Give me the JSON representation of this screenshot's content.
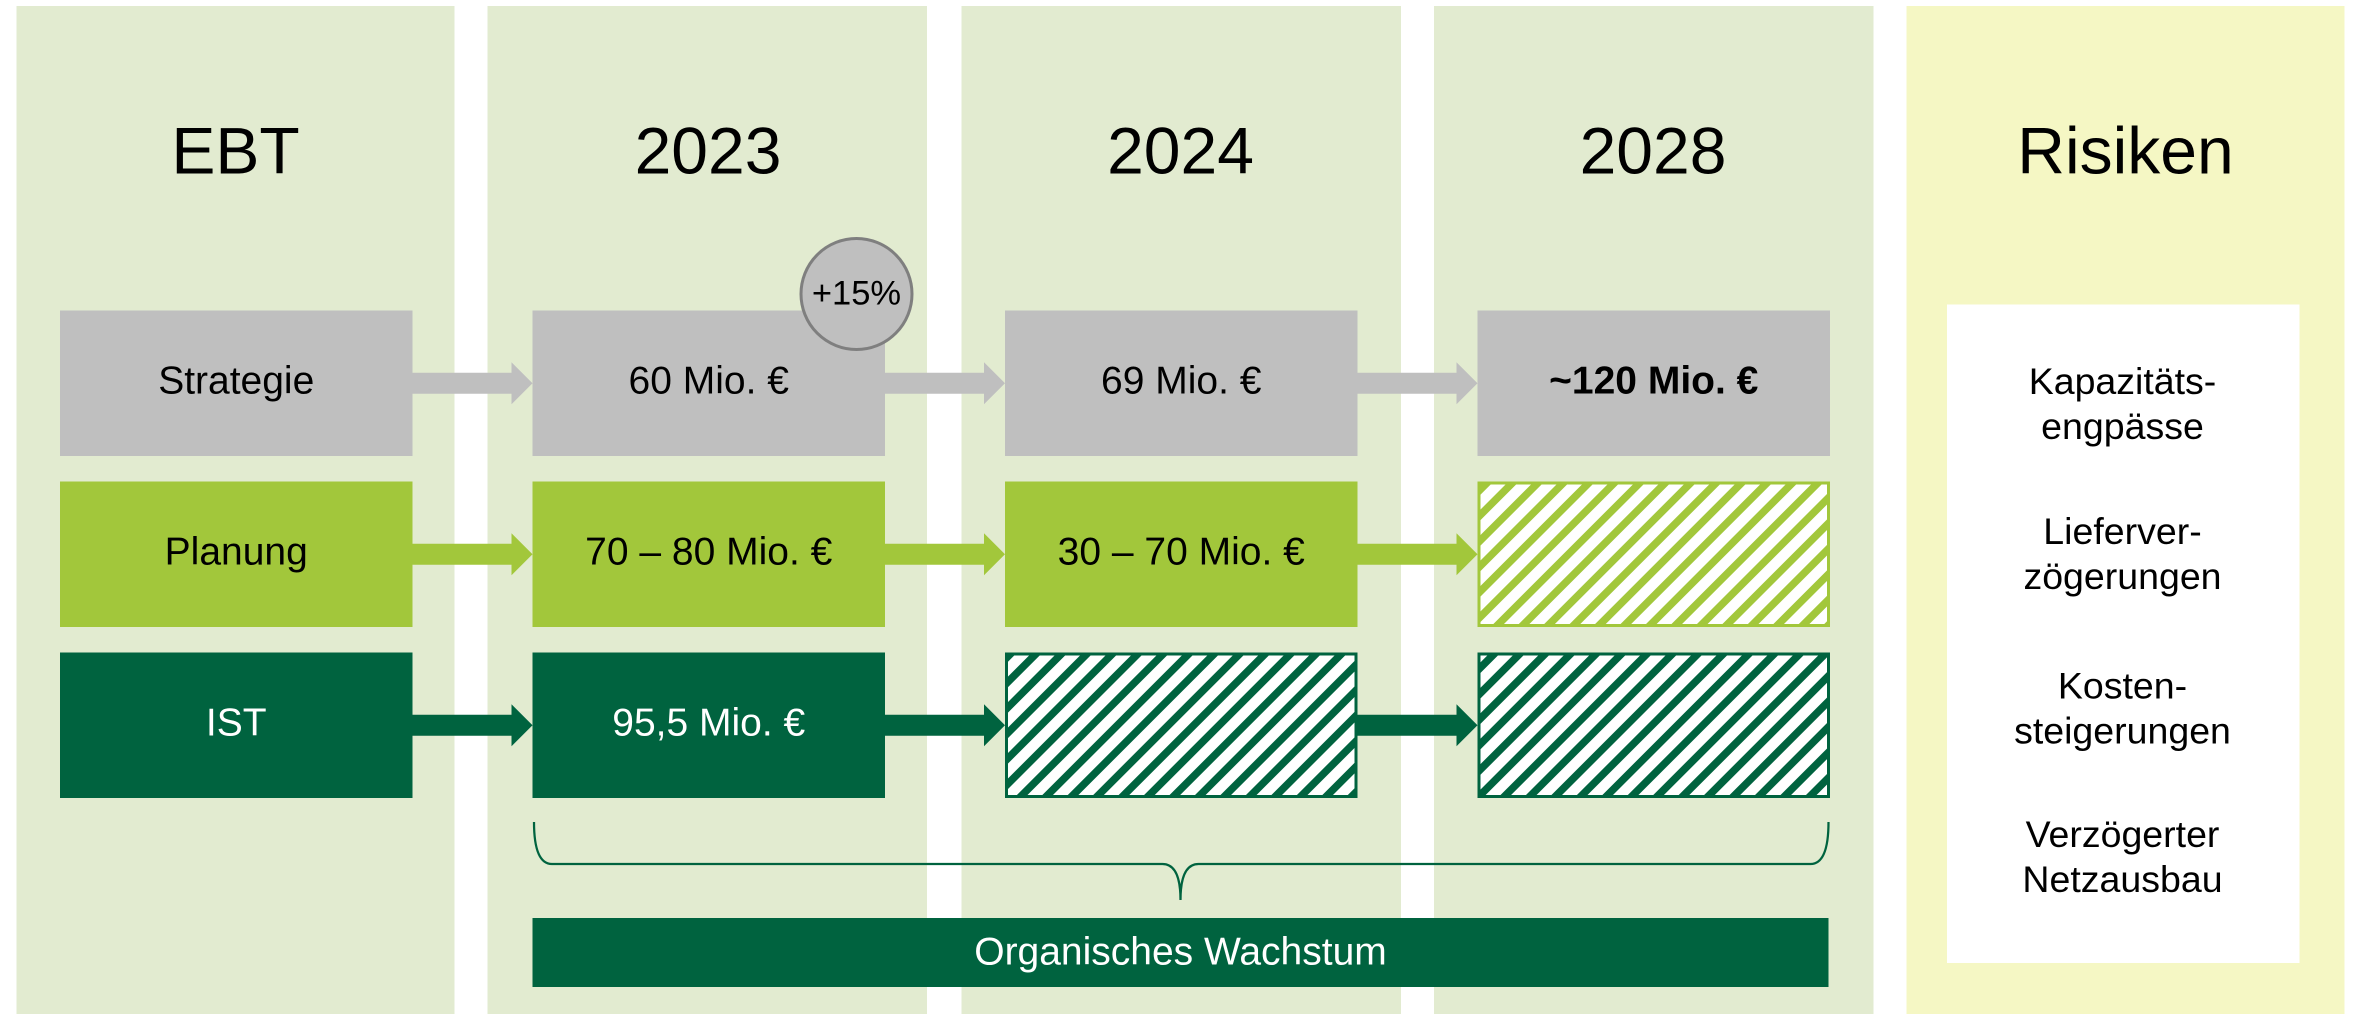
{
  "header": {
    "columns": [
      "EBT",
      "2023",
      "2024",
      "2028",
      "Risiken"
    ]
  },
  "rows": [
    {
      "label": "Strategie",
      "cells": [
        "60 Mio. €",
        "69 Mio. €",
        "~120 Mio. €"
      ]
    },
    {
      "label": "Planung",
      "cells": [
        "70 – 80 Mio. €",
        "30 – 70 Mio. €",
        null
      ]
    },
    {
      "label": "IST",
      "cells": [
        "95,5 Mio. €",
        null,
        null
      ]
    }
  ],
  "badge": "+15%",
  "brace_label": "Organisches Wachstum",
  "risks": [
    [
      "Kapazitäts-",
      "engpässe"
    ],
    [
      "Lieferver-",
      "zögerungen"
    ],
    [
      "Kosten-",
      "steigerungen"
    ],
    [
      "Verzögerter",
      "Netzausbau"
    ]
  ]
}
